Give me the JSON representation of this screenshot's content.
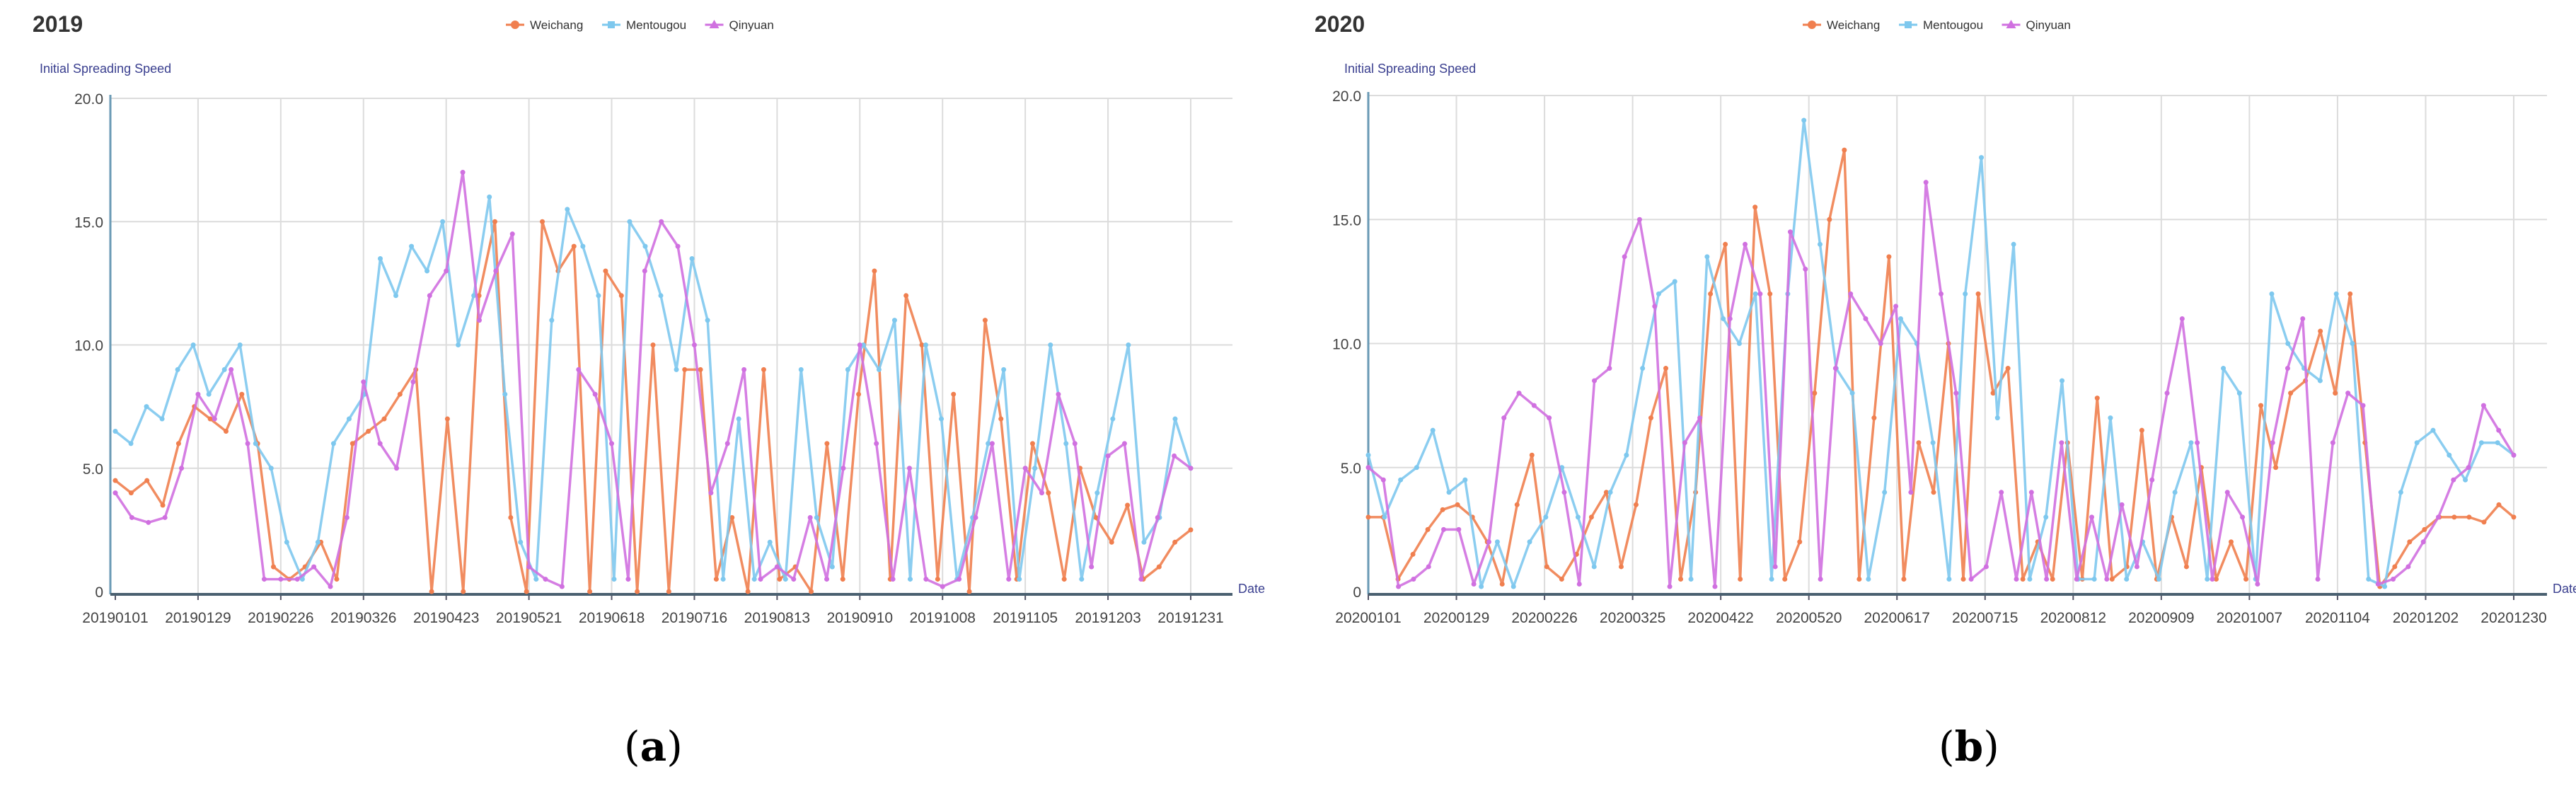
{
  "chart_data": [
    {
      "type": "line",
      "title": "2019",
      "caption": "a",
      "ylabel": "Initial Spreading Speed",
      "xlabel": "Date",
      "ylim": [
        0,
        20
      ],
      "yticks": [
        "0",
        "5.0",
        "10.0",
        "15.0",
        "20.0"
      ],
      "ytick_values": [
        0,
        5,
        10,
        15,
        20
      ],
      "xticks": [
        "20190101",
        "20190129",
        "20190226",
        "20190326",
        "20190423",
        "20190521",
        "20190618",
        "20190716",
        "20190813",
        "20190910",
        "20191008",
        "20191105",
        "20191203",
        "20191231"
      ],
      "grid": true,
      "legend": "top-center",
      "series": [
        {
          "name": "Weichang",
          "color": "#F07F4F",
          "values": [
            4.5,
            4,
            4.5,
            3.5,
            6,
            7.5,
            7,
            6.5,
            8,
            6,
            1,
            0.5,
            1,
            2,
            0.5,
            6,
            6.5,
            7,
            8,
            9,
            0,
            7,
            0,
            12,
            15,
            3,
            0,
            15,
            13,
            14,
            0,
            13,
            12,
            0,
            10,
            0,
            9,
            9,
            0.5,
            3,
            0,
            9,
            0.5,
            1,
            0,
            6,
            0.5,
            8,
            13,
            0.5,
            12,
            10,
            0.5,
            8,
            0,
            11,
            7,
            0.5,
            6,
            4,
            0.5,
            5,
            3,
            2,
            3.5,
            0.5,
            1,
            2,
            2.5
          ]
        },
        {
          "name": "Mentougou",
          "color": "#7EC8EE",
          "values": [
            6.5,
            6,
            7.5,
            7,
            9,
            10,
            8,
            9,
            10,
            6,
            5,
            2,
            0.5,
            2,
            6,
            7,
            8,
            13.5,
            12,
            14,
            13,
            15,
            10,
            12,
            16,
            8,
            2,
            0.5,
            11,
            15.5,
            14,
            12,
            0.5,
            15,
            14,
            12,
            9,
            13.5,
            11,
            0.5,
            7,
            0.5,
            2,
            0.5,
            9,
            3,
            1,
            9,
            10,
            9,
            11,
            0.5,
            10,
            7,
            0.5,
            3,
            6,
            9,
            0.5,
            5,
            10,
            6,
            0.5,
            4,
            7,
            10,
            2,
            3,
            7,
            5
          ]
        },
        {
          "name": "Qinyuan",
          "color": "#D070E0",
          "values": [
            4,
            3,
            2.8,
            3,
            5,
            8,
            7,
            9,
            6,
            0.5,
            0.5,
            0.5,
            1,
            0.2,
            3,
            8.5,
            6,
            5,
            8.5,
            12,
            13,
            17,
            11,
            13,
            14.5,
            1,
            0.5,
            0.2,
            9,
            8,
            6,
            0.5,
            13,
            15,
            14,
            10,
            4,
            6,
            9,
            0.5,
            1,
            0.5,
            3,
            0.5,
            5,
            10,
            6,
            0.5,
            5,
            0.5,
            0.2,
            0.5,
            3,
            6,
            0.5,
            5,
            4,
            8,
            6,
            1,
            5.5,
            6,
            0.5,
            3,
            5.5,
            5
          ]
        }
      ]
    },
    {
      "type": "line",
      "title": "2020",
      "caption": "b",
      "ylabel": "Initial Spreading Speed",
      "xlabel": "Date",
      "ylim": [
        0,
        20
      ],
      "yticks": [
        "0",
        "5.0",
        "10.0",
        "15.0",
        "20.0"
      ],
      "ytick_values": [
        0,
        5,
        10,
        15,
        20
      ],
      "xticks": [
        "20200101",
        "20200129",
        "20200226",
        "20200325",
        "20200422",
        "20200520",
        "20200617",
        "20200715",
        "20200812",
        "20200909",
        "20201007",
        "20201104",
        "20201202",
        "20201230"
      ],
      "grid": true,
      "legend": "top-center",
      "series": [
        {
          "name": "Weichang",
          "color": "#F07F4F",
          "values": [
            3,
            3,
            0.5,
            1.5,
            2.5,
            3.3,
            3.5,
            3,
            2,
            0.3,
            3.5,
            5.5,
            1,
            0.5,
            1.5,
            3,
            4,
            1,
            3.5,
            7,
            9,
            0.5,
            4,
            12,
            14,
            0.5,
            15.5,
            12,
            0.5,
            2,
            8,
            15,
            17.8,
            0.5,
            7,
            13.5,
            0.5,
            6,
            4,
            10,
            0.5,
            12,
            8,
            9,
            0.5,
            2,
            0.5,
            6,
            0.5,
            7.8,
            0.5,
            1,
            6.5,
            0.5,
            3,
            1,
            5,
            0.5,
            2,
            0.5,
            7.5,
            5,
            8,
            8.5,
            10.5,
            8,
            12,
            6,
            0.2,
            1,
            2,
            2.5,
            3,
            3,
            3,
            2.8,
            3.5,
            3
          ]
        },
        {
          "name": "Mentougou",
          "color": "#7EC8EE",
          "values": [
            5.5,
            3,
            4.5,
            5,
            6.5,
            4,
            4.5,
            0.2,
            2,
            0.2,
            2,
            3,
            5,
            3,
            1,
            4,
            5.5,
            9,
            12,
            12.5,
            0.5,
            13.5,
            11,
            10,
            12,
            0.5,
            12,
            19,
            14,
            9,
            8,
            0.5,
            4,
            11,
            10,
            6,
            0.5,
            12,
            17.5,
            7,
            14,
            0.5,
            3,
            8.5,
            0.5,
            0.5,
            7,
            0.5,
            2,
            0.5,
            4,
            6,
            0.5,
            9,
            8,
            0.5,
            12,
            10,
            9,
            8.5,
            12,
            10,
            0.5,
            0.2,
            4,
            6,
            6.5,
            5.5,
            4.5,
            6,
            6,
            5.5
          ]
        },
        {
          "name": "Qinyuan",
          "color": "#D070E0",
          "values": [
            5,
            4.5,
            0.2,
            0.5,
            1,
            2.5,
            2.5,
            0.3,
            2,
            7,
            8,
            7.5,
            7,
            4,
            0.3,
            8.5,
            9,
            13.5,
            15,
            11.5,
            0.2,
            6,
            7,
            0.2,
            11,
            14,
            12,
            1,
            14.5,
            13,
            0.5,
            9,
            12,
            11,
            10,
            11.5,
            4,
            16.5,
            12,
            8,
            0.5,
            1,
            4,
            0.5,
            4,
            0.5,
            6,
            0.5,
            3,
            0.5,
            3.5,
            1,
            4.5,
            8,
            11,
            6,
            0.5,
            4,
            3,
            0.3,
            6,
            9,
            11,
            0.5,
            6,
            8,
            7.5,
            0.3,
            0.5,
            1,
            2,
            3,
            4.5,
            5,
            7.5,
            6.5,
            5.5
          ]
        }
      ]
    }
  ]
}
